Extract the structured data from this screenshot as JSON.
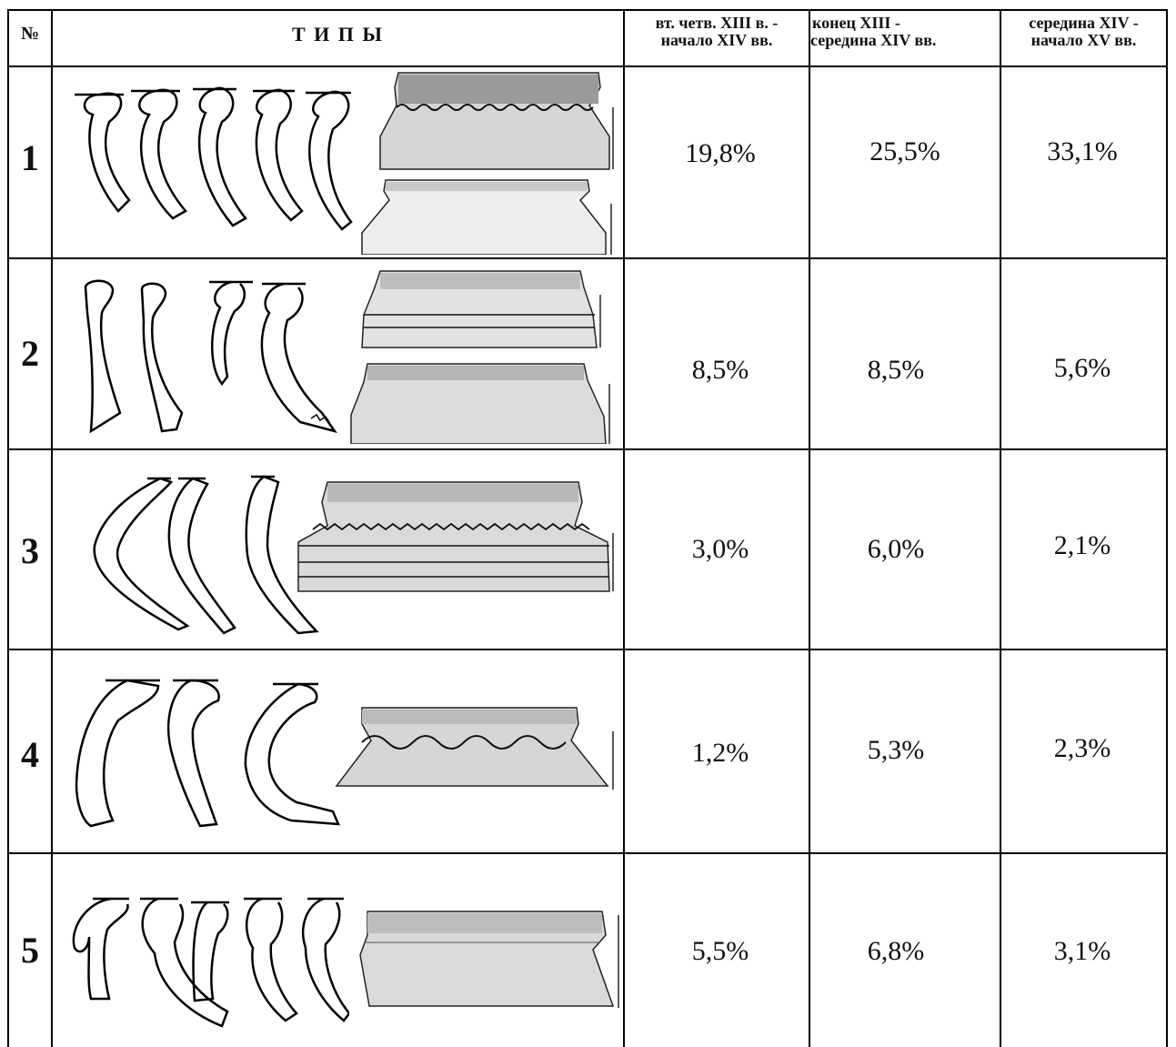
{
  "header": {
    "num": "№",
    "types": "Т И П Ы",
    "col1_line1": "вт. четв. XIII в. -",
    "col1_line2": "начало XIV вв.",
    "col2_line1": "конец XIII -",
    "col2_line2": "середина XIV вв.",
    "col3_line1": "середина XIV -",
    "col3_line2": "начало XV вв."
  },
  "rows": [
    {
      "num": "1",
      "p1": "19,8%",
      "p2": "25,5%",
      "p3": "33,1%"
    },
    {
      "num": "2",
      "p1": "8,5%",
      "p2": "8,5%",
      "p3": "5,6%"
    },
    {
      "num": "3",
      "p1": "3,0%",
      "p2": "6,0%",
      "p3": "2,1%"
    },
    {
      "num": "4",
      "p1": "1,2%",
      "p2": "5,3%",
      "p3": "2,3%"
    },
    {
      "num": "5",
      "p1": "5,5%",
      "p2": "6,8%",
      "p3": "3,1%"
    }
  ]
}
